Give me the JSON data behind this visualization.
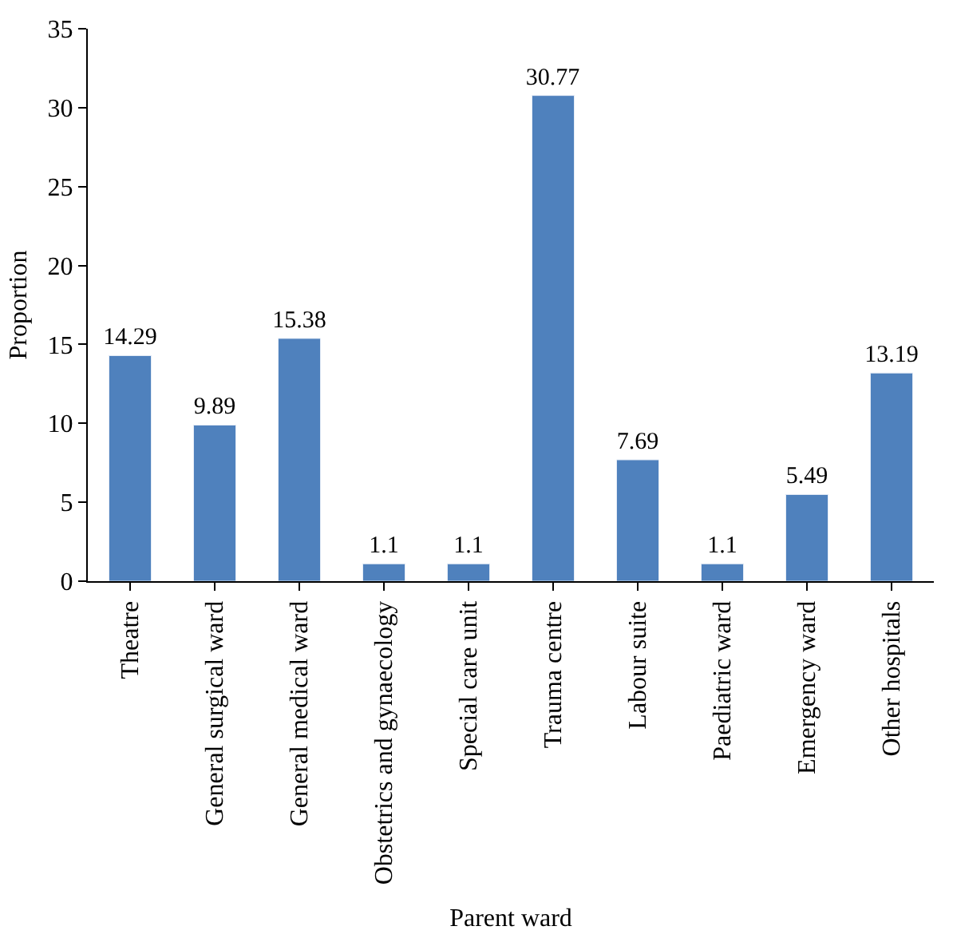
{
  "chart_data": {
    "type": "bar",
    "xlabel": "Parent ward",
    "ylabel": "Proportion",
    "categories": [
      "Theatre",
      "General surgical ward",
      "General medical ward",
      "Obstetrics and gynaecology",
      "Special care unit",
      "Trauma centre",
      "Labour suite",
      "Paediatric ward",
      "Emergency ward",
      "Other hospitals"
    ],
    "values": [
      14.29,
      9.89,
      15.38,
      1.1,
      1.1,
      30.77,
      7.69,
      1.1,
      5.49,
      13.19
    ],
    "color": "#4f81bd",
    "ylim": [
      0,
      35
    ],
    "yticks": [
      0,
      5,
      10,
      15,
      20,
      25,
      30,
      35
    ],
    "data_labels": true,
    "legend": false
  }
}
